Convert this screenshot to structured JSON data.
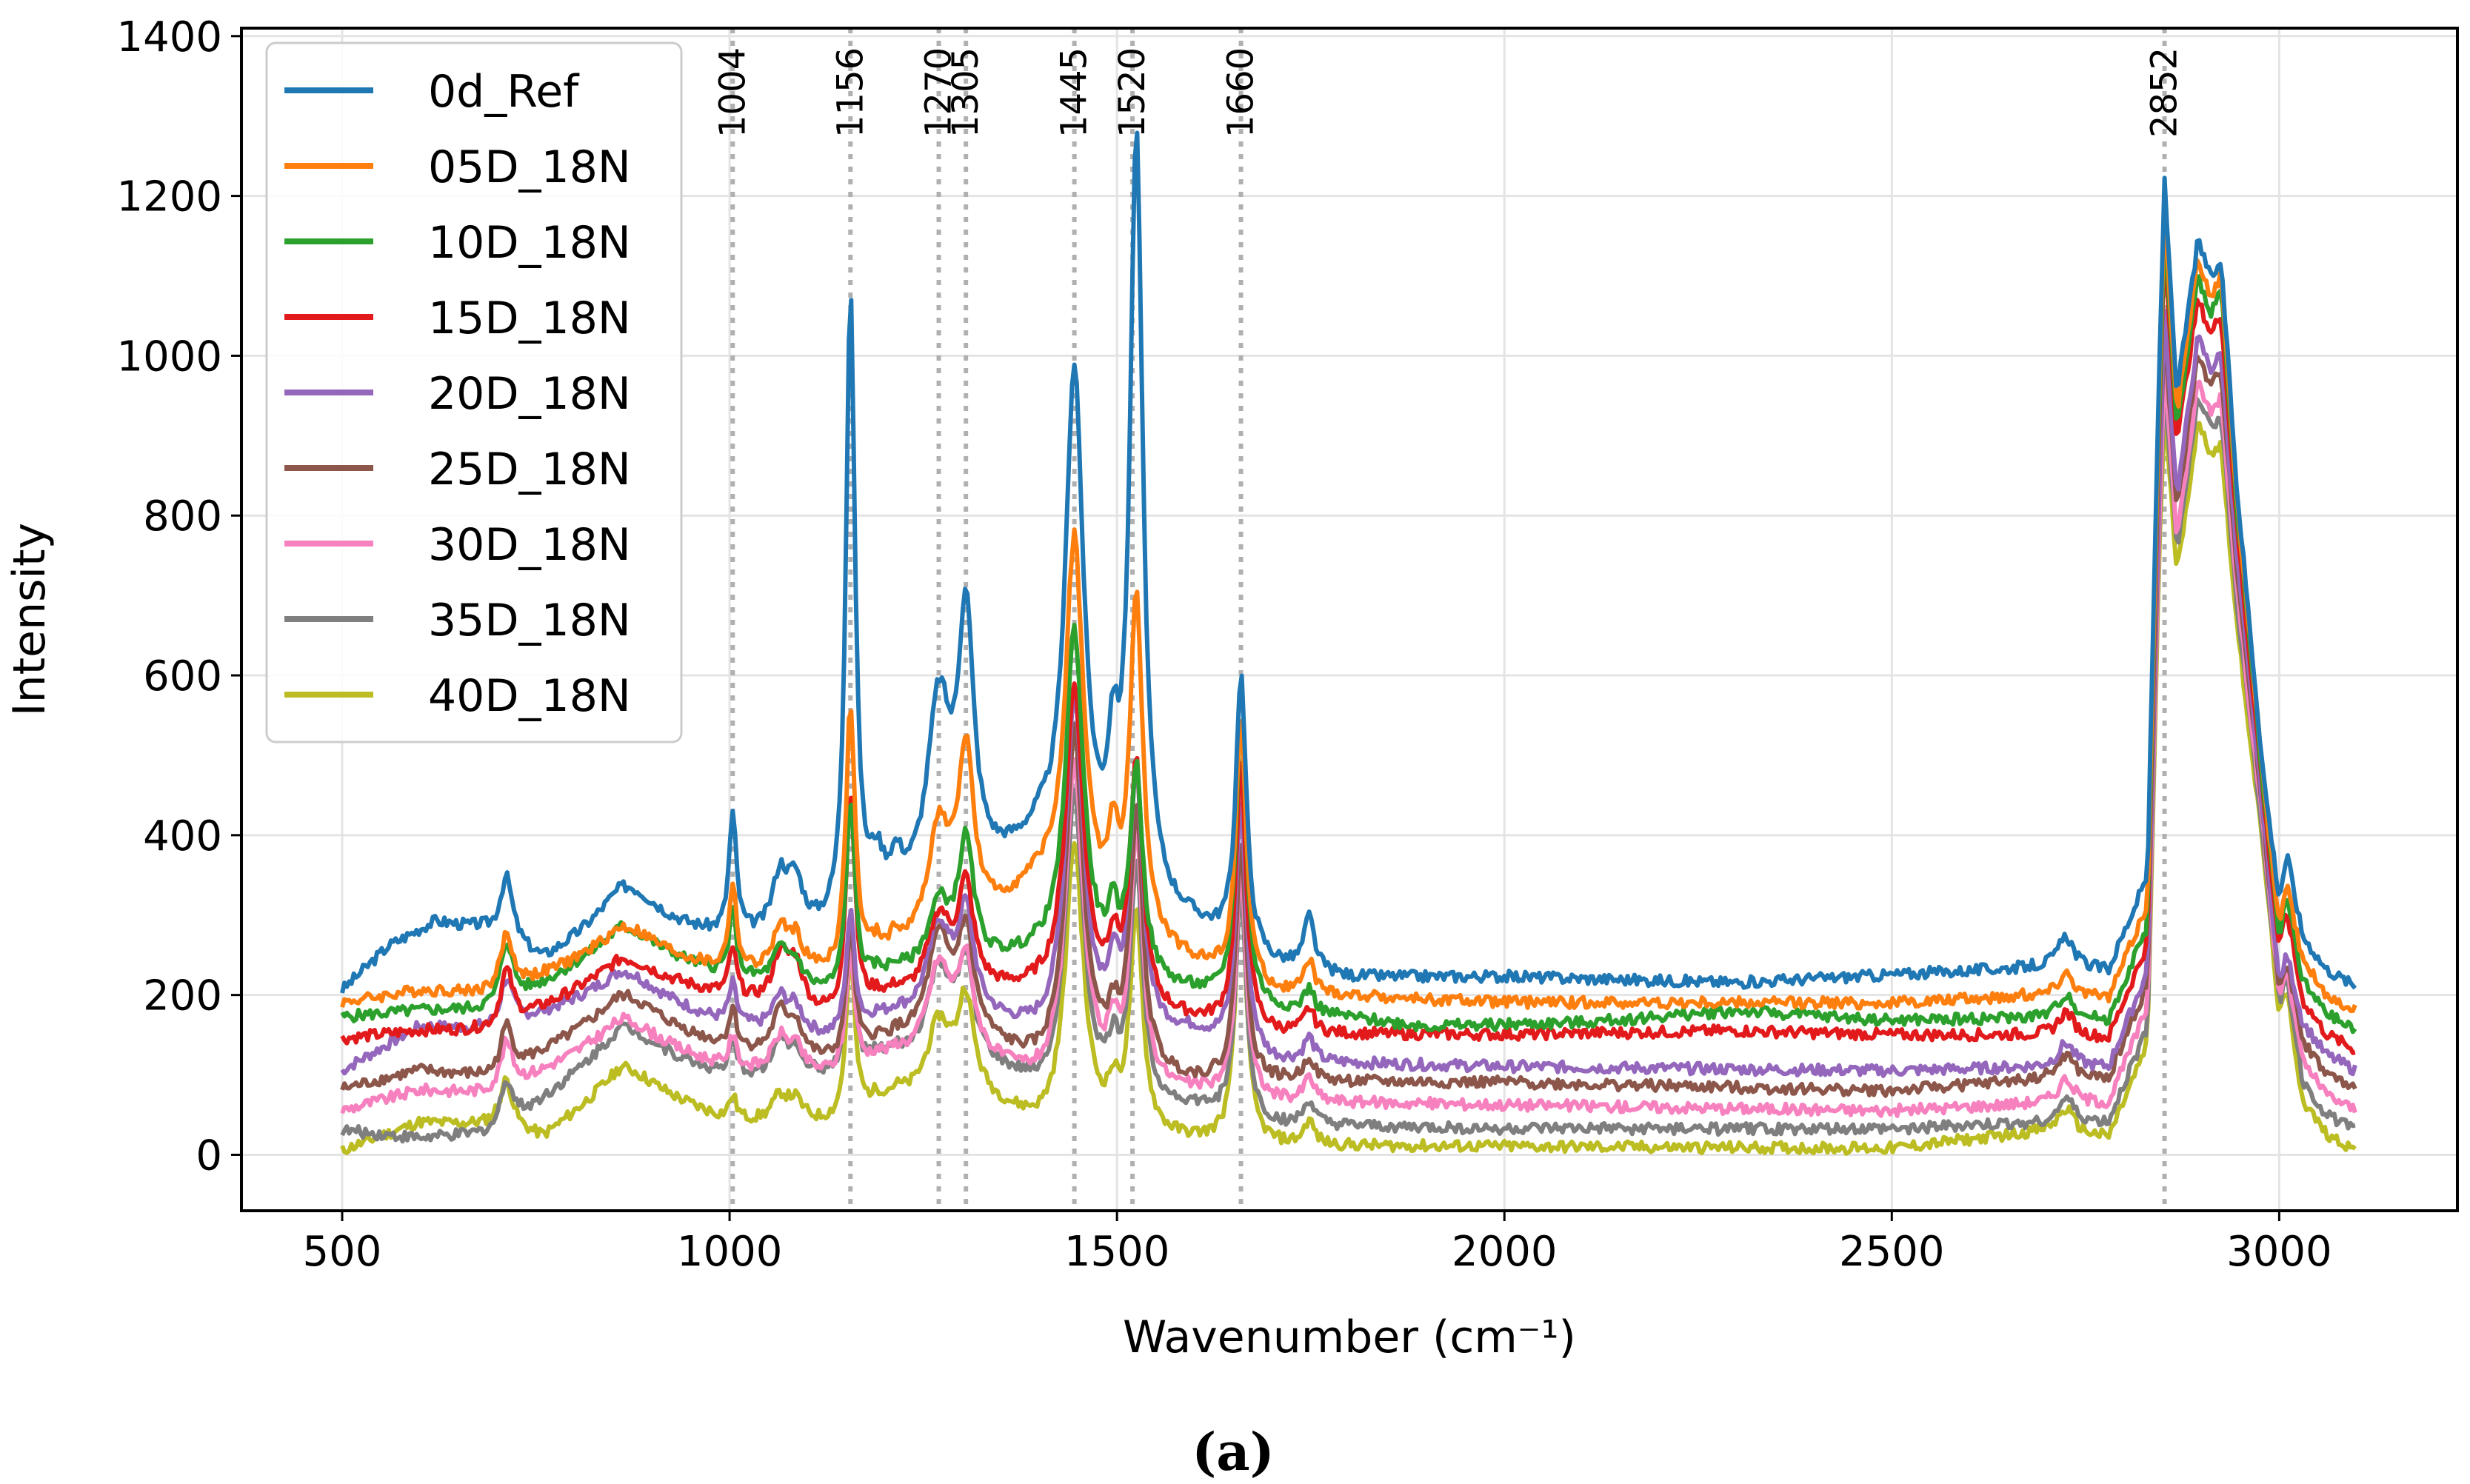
{
  "chart_data": {
    "type": "line",
    "title": "",
    "xlabel": "Wavenumber (cm⁻¹)",
    "ylabel": "Intensity",
    "xlim": [
      370,
      3230
    ],
    "ylim": [
      -70,
      1410
    ],
    "xticks": [
      500,
      1000,
      1500,
      2000,
      2500,
      3000
    ],
    "yticks": [
      0,
      200,
      400,
      600,
      800,
      1000,
      1200,
      1400
    ],
    "grid": true,
    "legend_position": "top-left",
    "caption": "(a)",
    "peak_markers": [
      1004,
      1156,
      1270,
      1305,
      1445,
      1520,
      1660,
      2852
    ],
    "peak_labels": [
      "1004",
      "1156",
      "1270",
      "1305",
      "1445",
      "1520",
      "1660",
      "2852"
    ],
    "peaks": [
      {
        "pos": 712,
        "width": 10
      },
      {
        "pos": 870,
        "width": 45
      },
      {
        "pos": 1004,
        "width": 6
      },
      {
        "pos": 1065,
        "width": 12
      },
      {
        "pos": 1085,
        "width": 12
      },
      {
        "pos": 1156,
        "width": 7
      },
      {
        "pos": 1190,
        "width": 10
      },
      {
        "pos": 1215,
        "width": 10
      },
      {
        "pos": 1270,
        "width": 18
      },
      {
        "pos": 1305,
        "width": 12
      },
      {
        "pos": 1445,
        "width": 14
      },
      {
        "pos": 1495,
        "width": 8
      },
      {
        "pos": 1525,
        "width": 10
      },
      {
        "pos": 1660,
        "width": 8
      },
      {
        "pos": 1748,
        "width": 8
      },
      {
        "pos": 2725,
        "width": 12
      }
    ],
    "series": [
      {
        "name": "0d_Ref",
        "color": "#1f77b4",
        "baseline": [
          [
            500,
            205
          ],
          [
            560,
            260
          ],
          [
            620,
            290
          ],
          [
            680,
            280
          ],
          [
            760,
            240
          ],
          [
            860,
            295
          ],
          [
            1000,
            265
          ],
          [
            1140,
            270
          ],
          [
            1200,
            300
          ],
          [
            1300,
            330
          ],
          [
            1400,
            380
          ],
          [
            1500,
            310
          ],
          [
            1600,
            280
          ],
          [
            1700,
            235
          ],
          [
            1800,
            220
          ],
          [
            2000,
            222
          ],
          [
            2300,
            215
          ],
          [
            2500,
            225
          ],
          [
            2700,
            235
          ],
          [
            2800,
            230
          ],
          [
            3100,
            210
          ]
        ],
        "amps": [
          80,
          40,
          150,
          70,
          60,
          790,
          50,
          40,
          230,
          320,
          620,
          130,
          950,
          340,
          65,
          40
        ],
        "ch": [
          1200,
          1130,
          1105,
          370,
          210
        ]
      },
      {
        "name": "05D_18N",
        "color": "#ff7f0e",
        "baseline": [
          [
            500,
            190
          ],
          [
            600,
            205
          ],
          [
            700,
            200
          ],
          [
            860,
            260
          ],
          [
            1000,
            225
          ],
          [
            1140,
            220
          ],
          [
            1200,
            235
          ],
          [
            1300,
            270
          ],
          [
            1400,
            330
          ],
          [
            1500,
            270
          ],
          [
            1600,
            235
          ],
          [
            1700,
            200
          ],
          [
            2000,
            190
          ],
          [
            2500,
            190
          ],
          [
            2700,
            200
          ],
          [
            2800,
            195
          ],
          [
            3100,
            180
          ]
        ],
        "amps": [
          70,
          25,
          110,
          50,
          40,
          330,
          20,
          20,
          140,
          220,
          460,
          90,
          420,
          330,
          40,
          30
        ],
        "ch": [
          1175,
          1110,
          1090,
          335,
          180
        ]
      },
      {
        "name": "10D_18N",
        "color": "#2ca02c",
        "baseline": [
          [
            500,
            172
          ],
          [
            600,
            180
          ],
          [
            700,
            180
          ],
          [
            860,
            265
          ],
          [
            1000,
            220
          ],
          [
            1140,
            195
          ],
          [
            1200,
            215
          ],
          [
            1300,
            230
          ],
          [
            1400,
            245
          ],
          [
            1500,
            215
          ],
          [
            1600,
            200
          ],
          [
            1700,
            180
          ],
          [
            1900,
            160
          ],
          [
            2100,
            165
          ],
          [
            2300,
            180
          ],
          [
            2500,
            168
          ],
          [
            2700,
            172
          ],
          [
            2800,
            168
          ],
          [
            3100,
            155
          ]
        ],
        "amps": [
          80,
          20,
          80,
          40,
          30,
          240,
          10,
          10,
          80,
          150,
          420,
          60,
          260,
          360,
          30,
          30
        ],
        "ch": [
          1150,
          1090,
          1075,
          320,
          155
        ]
      },
      {
        "name": "15D_18N",
        "color": "#e31a1c",
        "baseline": [
          [
            500,
            145
          ],
          [
            600,
            155
          ],
          [
            700,
            155
          ],
          [
            860,
            230
          ],
          [
            1000,
            195
          ],
          [
            1140,
            165
          ],
          [
            1200,
            185
          ],
          [
            1300,
            200
          ],
          [
            1400,
            200
          ],
          [
            1500,
            180
          ],
          [
            1600,
            165
          ],
          [
            1700,
            150
          ],
          [
            2000,
            150
          ],
          [
            2300,
            155
          ],
          [
            2500,
            150
          ],
          [
            2700,
            150
          ],
          [
            2800,
            145
          ],
          [
            3100,
            130
          ]
        ],
        "amps": [
          70,
          15,
          60,
          60,
          55,
          280,
          10,
          10,
          95,
          125,
          390,
          60,
          300,
          330,
          30,
          30
        ],
        "ch": [
          1130,
          1060,
          1045,
          300,
          130
        ]
      },
      {
        "name": "20D_18N",
        "color": "#9467bd",
        "baseline": [
          [
            500,
            105
          ],
          [
            600,
            160
          ],
          [
            700,
            155
          ],
          [
            860,
            210
          ],
          [
            1000,
            160
          ],
          [
            1140,
            140
          ],
          [
            1200,
            160
          ],
          [
            1300,
            175
          ],
          [
            1400,
            145
          ],
          [
            1500,
            150
          ],
          [
            1600,
            150
          ],
          [
            1700,
            115
          ],
          [
            2000,
            110
          ],
          [
            2500,
            105
          ],
          [
            2700,
            110
          ],
          [
            2800,
            110
          ],
          [
            3100,
            105
          ]
        ],
        "amps": [
          60,
          20,
          50,
          40,
          30,
          150,
          10,
          10,
          110,
          120,
          420,
          60,
          320,
          310,
          30,
          30
        ],
        "ch": [
          1050,
          1020,
          1000,
          250,
          105
        ]
      },
      {
        "name": "25D_18N",
        "color": "#8c564b",
        "baseline": [
          [
            500,
            82
          ],
          [
            600,
            105
          ],
          [
            700,
            95
          ],
          [
            860,
            180
          ],
          [
            1000,
            130
          ],
          [
            1140,
            110
          ],
          [
            1200,
            130
          ],
          [
            1300,
            150
          ],
          [
            1400,
            105
          ],
          [
            1500,
            100
          ],
          [
            1600,
            90
          ],
          [
            1700,
            90
          ],
          [
            2000,
            90
          ],
          [
            2500,
            80
          ],
          [
            2700,
            95
          ],
          [
            2800,
            95
          ],
          [
            3100,
            80
          ]
        ],
        "amps": [
          60,
          20,
          50,
          50,
          40,
          160,
          10,
          10,
          120,
          120,
          420,
          50,
          320,
          300,
          30,
          30
        ],
        "ch": [
          1020,
          990,
          975,
          240,
          80
        ]
      },
      {
        "name": "30D_18N",
        "color": "#f781bf",
        "baseline": [
          [
            500,
            55
          ],
          [
            600,
            80
          ],
          [
            700,
            75
          ],
          [
            860,
            150
          ],
          [
            1000,
            105
          ],
          [
            1140,
            95
          ],
          [
            1200,
            110
          ],
          [
            1300,
            125
          ],
          [
            1400,
            85
          ],
          [
            1500,
            80
          ],
          [
            1600,
            75
          ],
          [
            1700,
            65
          ],
          [
            2000,
            62
          ],
          [
            2500,
            55
          ],
          [
            2700,
            65
          ],
          [
            2800,
            65
          ],
          [
            3100,
            55
          ]
        ],
        "amps": [
          60,
          20,
          40,
          40,
          30,
          150,
          10,
          10,
          110,
          110,
          400,
          50,
          310,
          290,
          30,
          30
        ],
        "ch": [
          980,
          960,
          945,
          230,
          55
        ]
      },
      {
        "name": "35D_18N",
        "color": "#7f7f7f",
        "baseline": [
          [
            500,
            30
          ],
          [
            600,
            20
          ],
          [
            700,
            25
          ],
          [
            860,
            140
          ],
          [
            1000,
            95
          ],
          [
            1140,
            95
          ],
          [
            1200,
            110
          ],
          [
            1300,
            120
          ],
          [
            1400,
            75
          ],
          [
            1500,
            60
          ],
          [
            1600,
            55
          ],
          [
            1700,
            35
          ],
          [
            2000,
            32
          ],
          [
            2500,
            32
          ],
          [
            2700,
            40
          ],
          [
            2800,
            40
          ],
          [
            3100,
            30
          ]
        ],
        "amps": [
          60,
          20,
          40,
          40,
          30,
          150,
          10,
          10,
          110,
          110,
          380,
          50,
          290,
          290,
          30,
          30
        ],
        "ch": [
          960,
          940,
          920,
          220,
          30
        ]
      },
      {
        "name": "40D_18N",
        "color": "#bcbd22",
        "baseline": [
          [
            500,
            5
          ],
          [
            600,
            40
          ],
          [
            700,
            35
          ],
          [
            760,
            20
          ],
          [
            860,
            90
          ],
          [
            1000,
            40
          ],
          [
            1140,
            35
          ],
          [
            1200,
            60
          ],
          [
            1300,
            80
          ],
          [
            1400,
            30
          ],
          [
            1500,
            20
          ],
          [
            1600,
            15
          ],
          [
            1700,
            10
          ],
          [
            2000,
            10
          ],
          [
            2500,
            8
          ],
          [
            2700,
            30
          ],
          [
            2800,
            20
          ],
          [
            3100,
            5
          ]
        ],
        "amps": [
          60,
          20,
          30,
          30,
          25,
          200,
          10,
          10,
          85,
          110,
          360,
          40,
          270,
          340,
          30,
          30
        ],
        "ch": [
          920,
          905,
          880,
          200,
          5
        ]
      }
    ]
  }
}
